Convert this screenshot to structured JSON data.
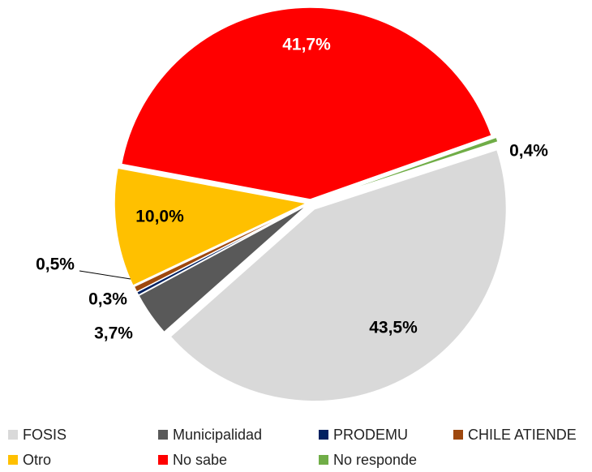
{
  "chart_data": {
    "type": "pie",
    "categories": [
      "FOSIS",
      "Municipalidad",
      "PRODEMU",
      "CHILE ATIENDE",
      "Otro",
      "No sabe",
      "No responde"
    ],
    "values": [
      43.5,
      3.7,
      0.3,
      0.5,
      10.0,
      41.7,
      0.4
    ],
    "value_labels": [
      "43,5%",
      "3,7%",
      "0,3%",
      "0,5%",
      "10,0%",
      "41,7%",
      "0,4%"
    ],
    "colors": [
      "#d9d9d9",
      "#595959",
      "#002060",
      "#9e480e",
      "#ffc000",
      "#ff0000",
      "#70ad47"
    ]
  }
}
